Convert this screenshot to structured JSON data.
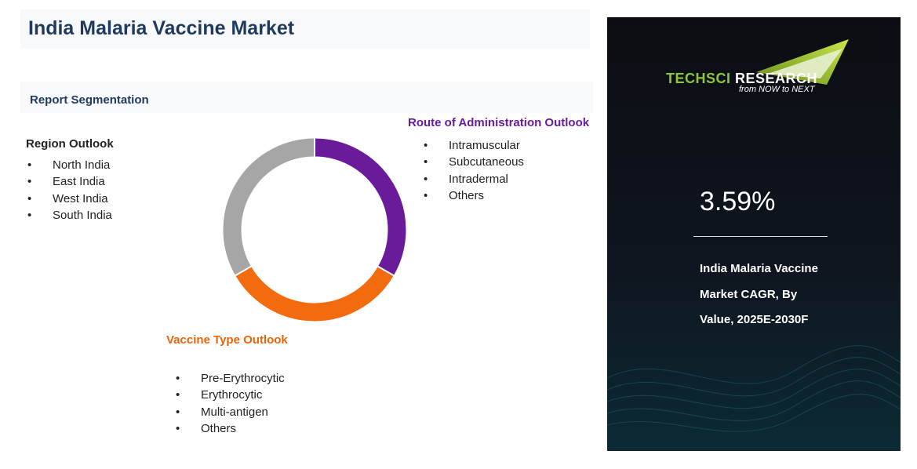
{
  "header": {
    "title": "India Malaria Vaccine Market",
    "subtitle": "Report Segmentation"
  },
  "segments": [
    {
      "heading": "Region Outlook",
      "items": [
        "North India",
        "East India",
        "West India",
        "South India"
      ]
    },
    {
      "heading": "Route of Administration Outlook",
      "items": [
        "Intramuscular",
        "Subcutaneous",
        "Intradermal",
        "Others"
      ]
    },
    {
      "heading": "Vaccine Type Outlook",
      "items": [
        "Pre-Erythrocytic",
        "Erythrocytic",
        "Multi-antigen",
        "Others"
      ]
    }
  ],
  "panel": {
    "logo": {
      "name_part1": "TechSci",
      "name_part2": "Research",
      "tagline": "from NOW to NEXT"
    },
    "cagr": "3.59%",
    "description": [
      "India Malaria Vaccine",
      "Market CAGR, By",
      "Value, 2025E-2030F"
    ]
  }
}
